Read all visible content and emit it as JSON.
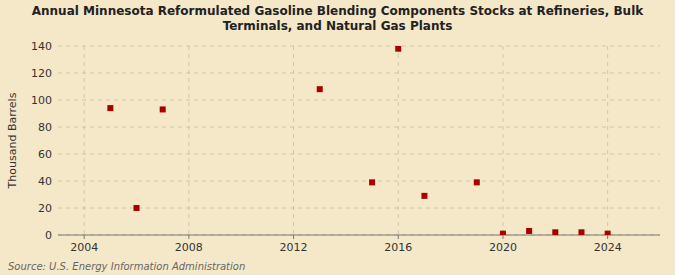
{
  "chart_data": {
    "type": "scatter",
    "title": "Annual Minnesota Reformulated Gasoline Blending Components Stocks at Refineries, Bulk\nTerminals, and Natural Gas Plants",
    "y_label": "Thousand Barrels",
    "annotations": [
      "Source: U.S. Energy Information Administration"
    ],
    "x": [
      2005,
      2006,
      2007,
      2013,
      2015,
      2016,
      2017,
      2019,
      2020,
      2021,
      2022,
      2023,
      2024
    ],
    "values": [
      94,
      20,
      93,
      108,
      39,
      138,
      29,
      39,
      1,
      3,
      2,
      2,
      1
    ],
    "color": "#aa0000",
    "marker": "square",
    "xlim": [
      2003,
      2026
    ],
    "ylim": [
      0,
      140
    ],
    "xticks": [
      2004,
      2008,
      2012,
      2016,
      2020,
      2024
    ],
    "yticks": [
      0,
      20,
      40,
      60,
      80,
      100,
      120,
      140
    ],
    "grid": true
  }
}
